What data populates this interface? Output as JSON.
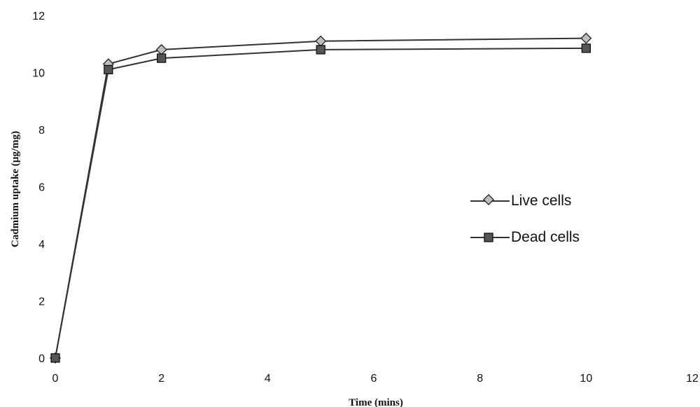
{
  "chart_data": {
    "type": "line",
    "title": "",
    "xlabel": "Time (mins)",
    "ylabel": "Cadmium uptake (µg/mg)",
    "xlim": [
      0,
      12
    ],
    "ylim": [
      0,
      12
    ],
    "x_ticks": [
      "0",
      "2",
      "4",
      "6",
      "8",
      "10",
      "12"
    ],
    "y_ticks": [
      "0",
      "2",
      "4",
      "6",
      "8",
      "10",
      "12"
    ],
    "grid": false,
    "legend_position": "right",
    "series": [
      {
        "name": "Live cells",
        "marker": "diamond",
        "color": "#333333",
        "x": [
          0,
          1,
          2,
          5,
          10
        ],
        "y": [
          0,
          10.3,
          10.8,
          11.1,
          11.2
        ]
      },
      {
        "name": "Dead cells",
        "marker": "square",
        "color": "#333333",
        "x": [
          0,
          1,
          2,
          5,
          10
        ],
        "y": [
          0,
          10.1,
          10.5,
          10.8,
          10.85
        ]
      }
    ]
  }
}
